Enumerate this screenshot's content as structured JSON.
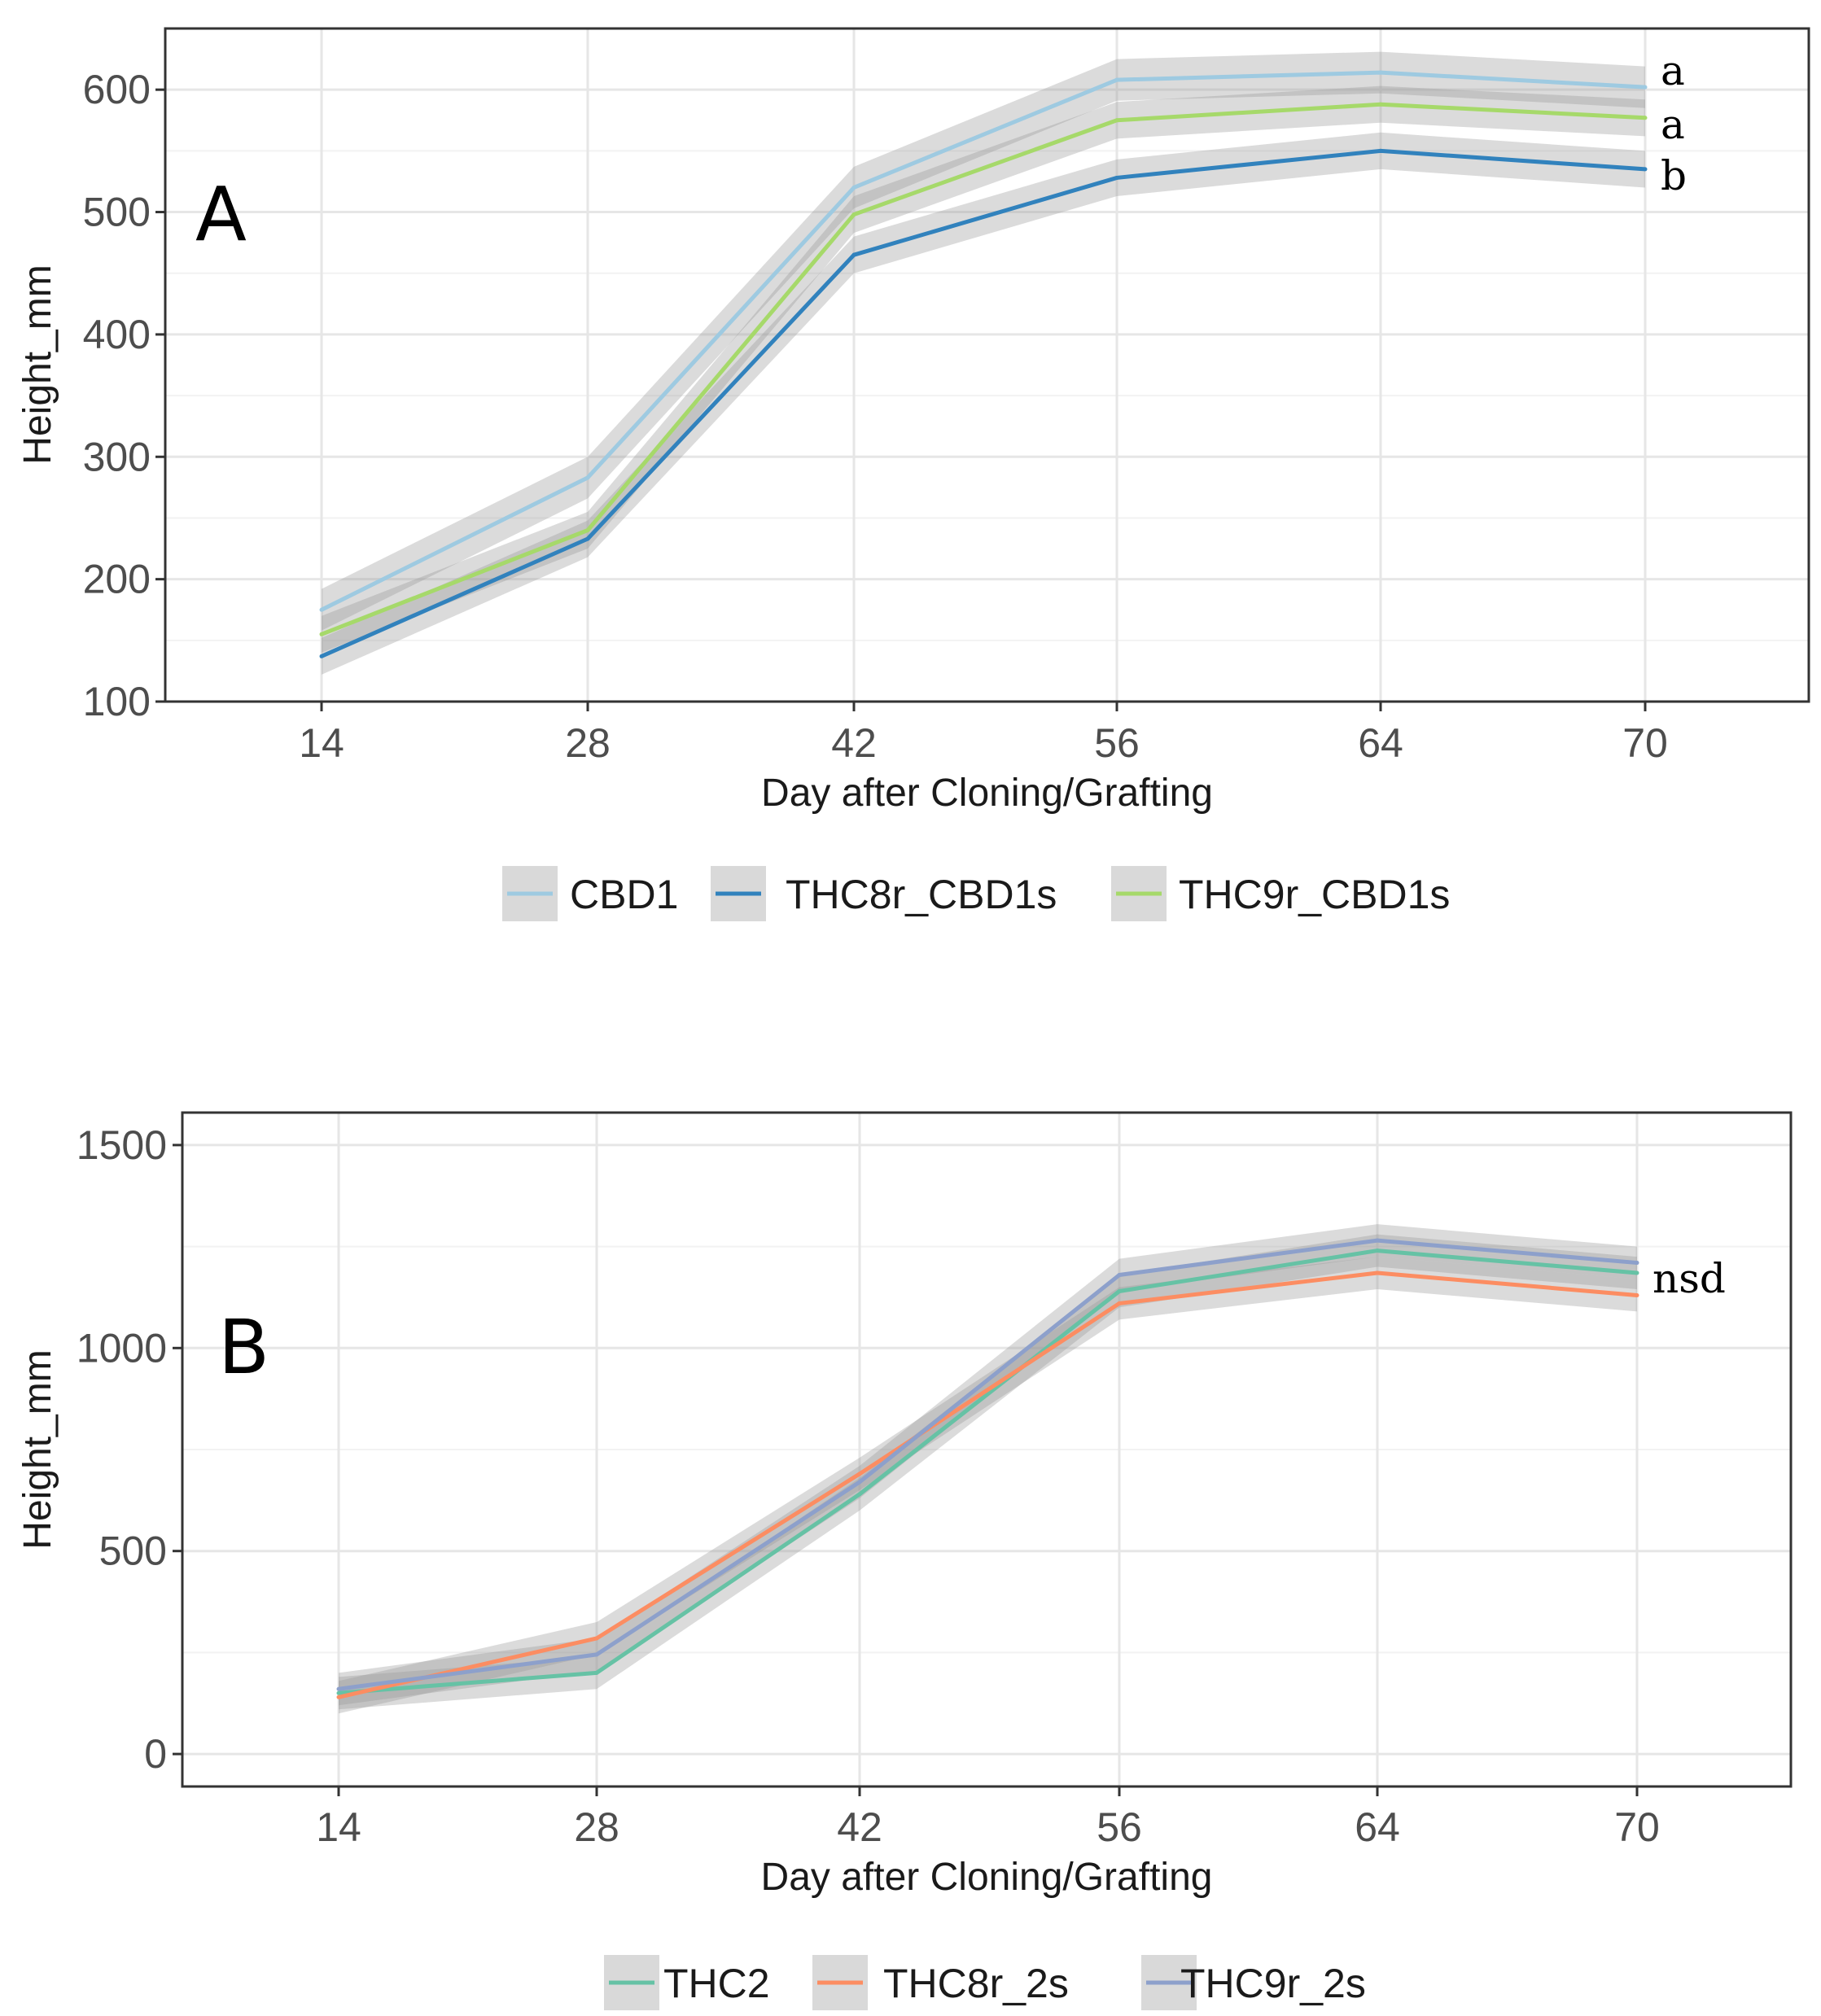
{
  "chart_data": [
    {
      "type": "line",
      "panel_label": "A",
      "xlabel": "Day after Cloning/Grafting",
      "ylabel": "Height_mm",
      "x": [
        14,
        28,
        42,
        56,
        64,
        70
      ],
      "x_tick_labels": [
        "14",
        "28",
        "42",
        "56",
        "64",
        "70"
      ],
      "ylim": [
        100,
        650
      ],
      "y_ticks": [
        100,
        200,
        300,
        400,
        500,
        600
      ],
      "y_tick_labels": [
        "100",
        "200",
        "300",
        "400",
        "500",
        "600"
      ],
      "grid": true,
      "legend_position": "bottom",
      "series": [
        {
          "name": "CBD1",
          "color": "#9ecae1",
          "values": [
            175,
            283,
            520,
            608,
            614,
            602
          ],
          "ci": 17,
          "sig_label": "a"
        },
        {
          "name": "THC8r_CBD1s",
          "color": "#3182bd",
          "values": [
            137,
            233,
            465,
            528,
            550,
            535
          ],
          "ci": 15,
          "sig_label": "b"
        },
        {
          "name": "THC9r_CBD1s",
          "color": "#a6d96a",
          "values": [
            155,
            240,
            498,
            575,
            588,
            577
          ],
          "ci": 15,
          "sig_label": "a"
        }
      ]
    },
    {
      "type": "line",
      "panel_label": "B",
      "xlabel": "Day after Cloning/Grafting",
      "ylabel": "Height_mm",
      "x": [
        14,
        28,
        42,
        56,
        64,
        70
      ],
      "x_tick_labels": [
        "14",
        "28",
        "42",
        "56",
        "64",
        "70"
      ],
      "ylim": [
        -80,
        1580
      ],
      "y_ticks": [
        0,
        500,
        1000,
        1500
      ],
      "y_tick_labels": [
        "0",
        "500",
        "1000",
        "1500"
      ],
      "grid": true,
      "legend_position": "bottom",
      "annotation": "nsd",
      "series": [
        {
          "name": "THC2",
          "color": "#66c2a5",
          "values": [
            150,
            200,
            640,
            1140,
            1240,
            1185
          ],
          "ci": 40
        },
        {
          "name": "THC8r_2s",
          "color": "#fc8d62",
          "values": [
            140,
            285,
            690,
            1110,
            1185,
            1130
          ],
          "ci": 40
        },
        {
          "name": "THC9r_2s",
          "color": "#8da0cb",
          "values": [
            160,
            245,
            670,
            1180,
            1265,
            1210
          ],
          "ci": 40
        }
      ]
    }
  ]
}
